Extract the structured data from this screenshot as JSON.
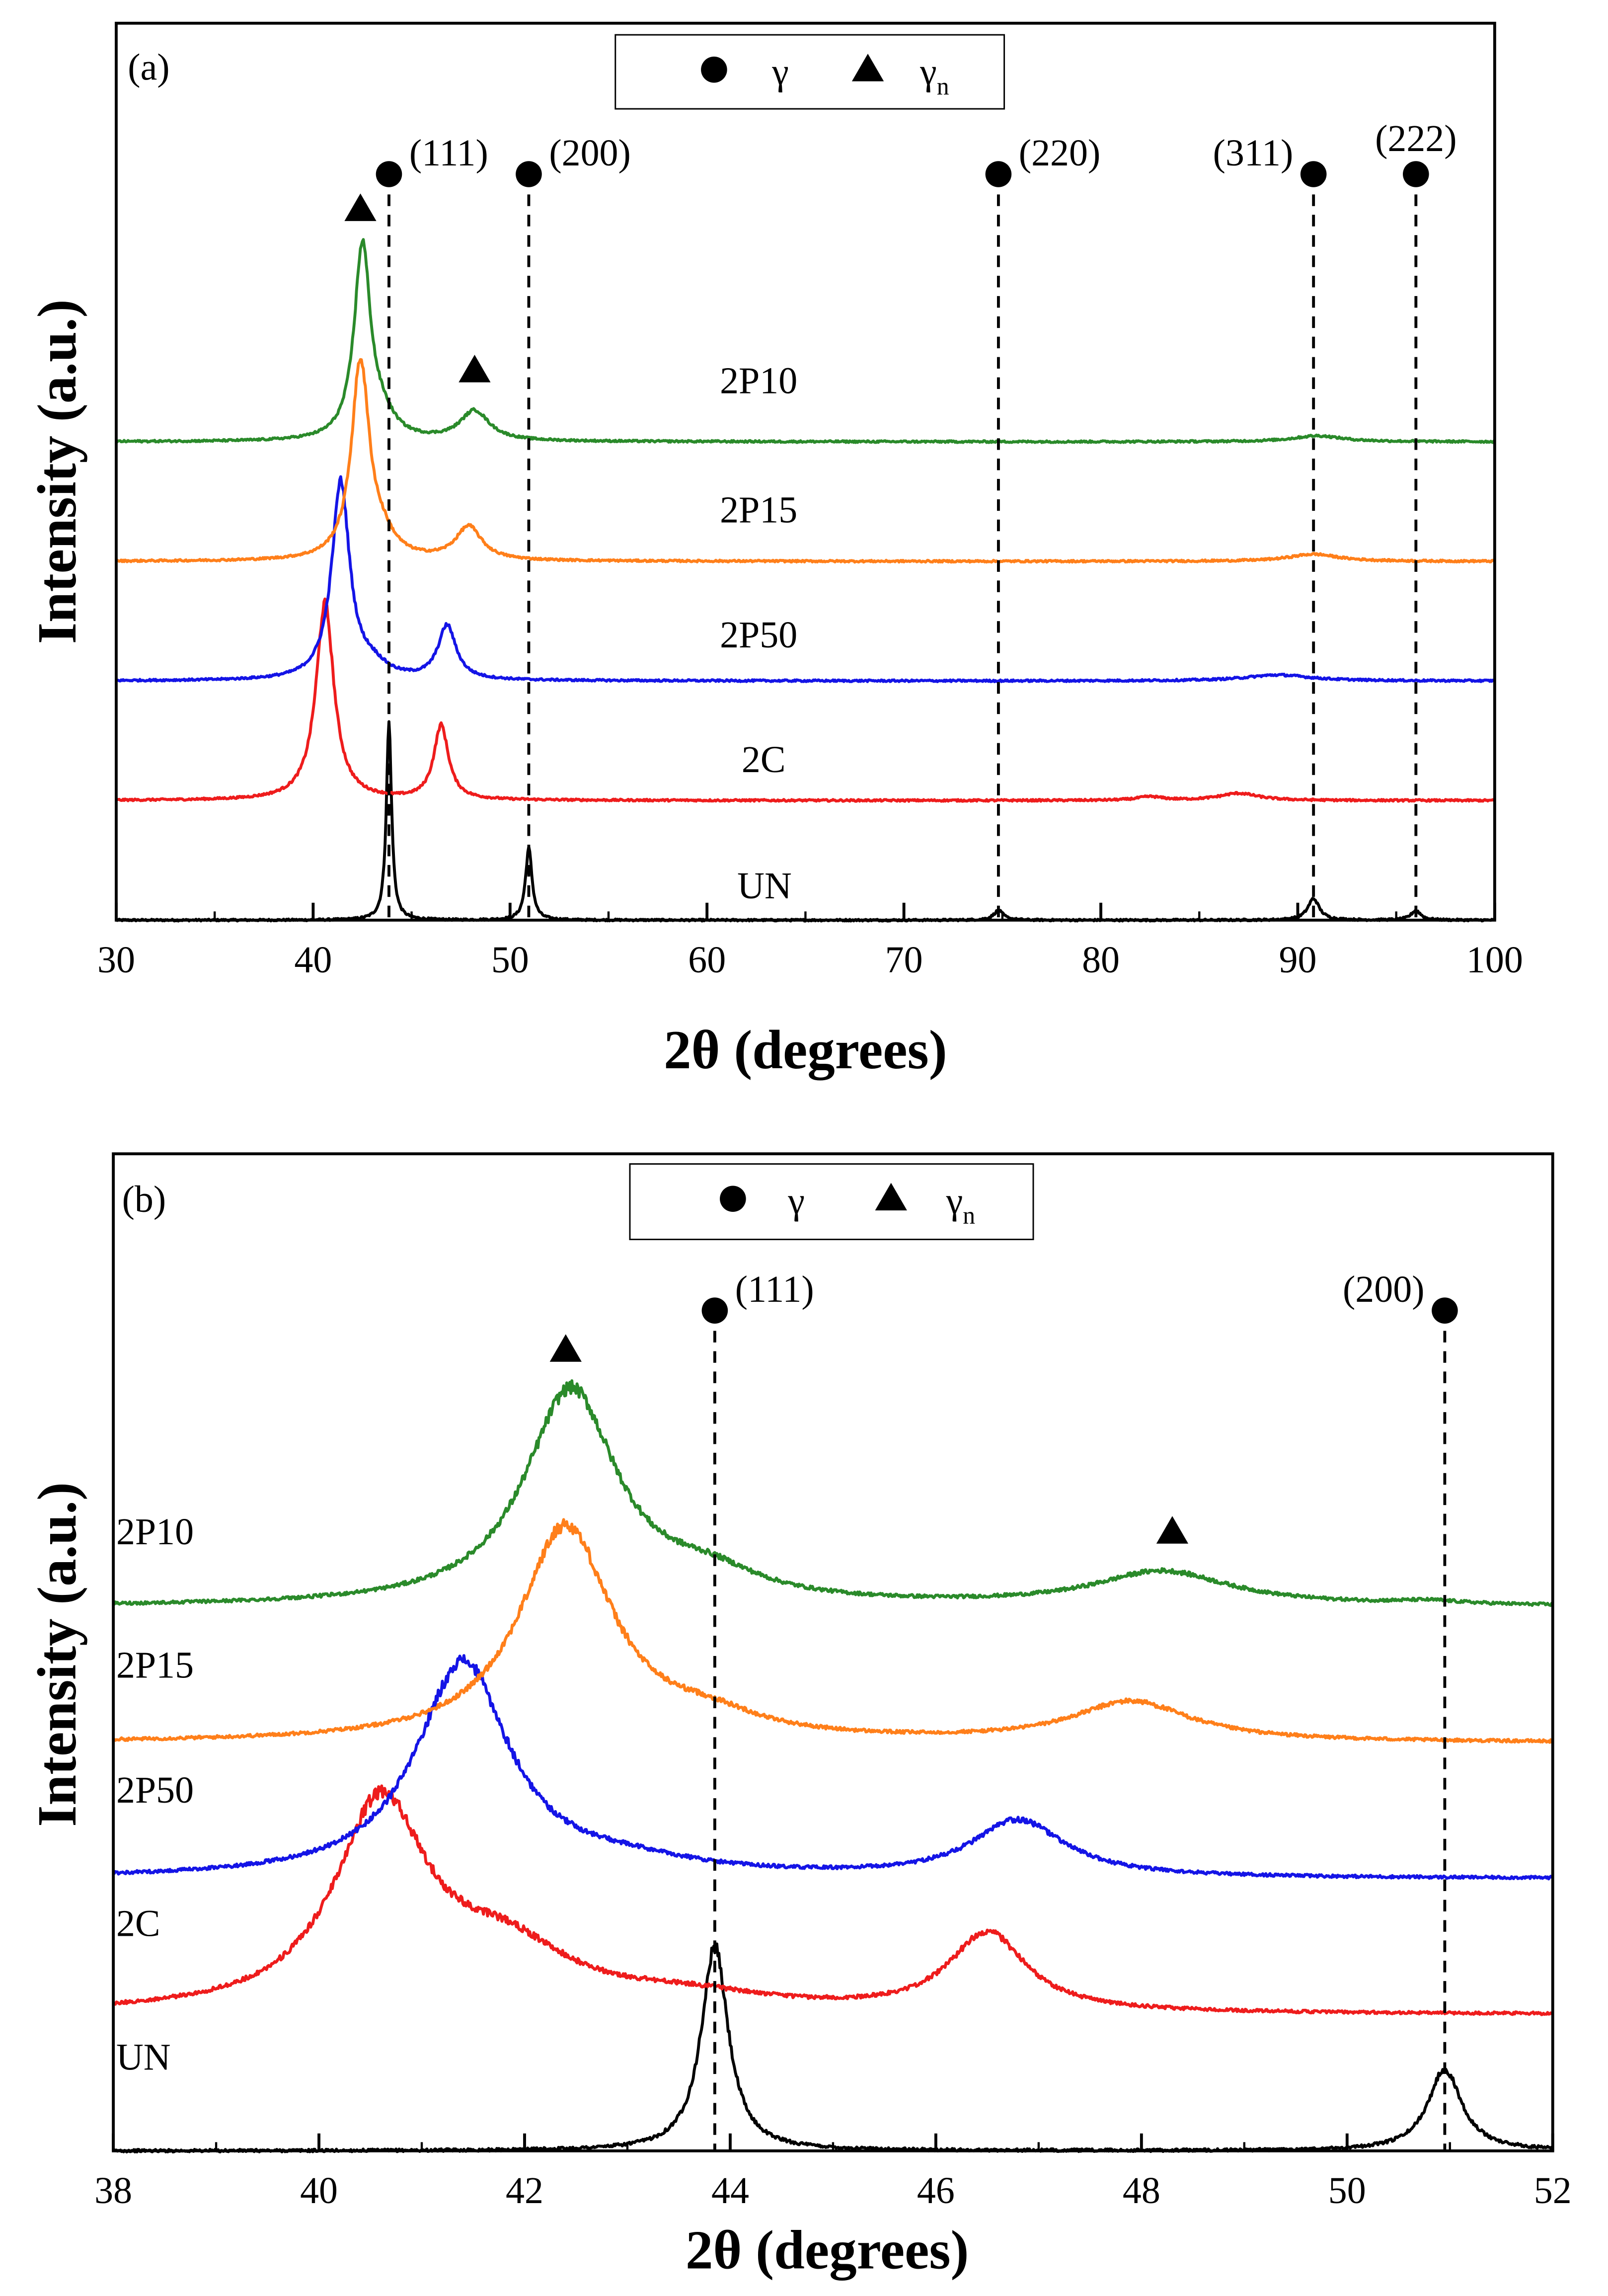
{
  "figure": {
    "legend": {
      "circle_label": "γ",
      "triangle_label": "γ",
      "triangle_sub": "n"
    },
    "colors": {
      "2P10": "#2a8a2a",
      "2P15": "#ff7f1a",
      "2P50": "#1414e6",
      "2C": "#ee1c1c",
      "UN": "#000000"
    }
  },
  "chart_data": [
    {
      "type": "line",
      "panel_label": "(a)",
      "xlabel": "2θ (degrees)",
      "ylabel": "Intensity (a.u.)",
      "xlim": [
        30,
        100
      ],
      "ylim": [
        0,
        7.5
      ],
      "xticks": [
        30,
        40,
        50,
        60,
        70,
        80,
        90,
        100
      ],
      "grid": false,
      "legend_position": "top-center",
      "series": [
        {
          "name": "2P10",
          "offset": 4.0,
          "label": "2P10",
          "peaks": [
            {
              "pos": 42.5,
              "amp": 1.62,
              "w": 0.5
            },
            {
              "pos": 43.5,
              "amp": 0.15,
              "w": 0.8
            },
            {
              "pos": 48.2,
              "amp": 0.25,
              "w": 0.9
            },
            {
              "pos": 91.0,
              "amp": 0.05,
              "w": 1.5
            }
          ]
        },
        {
          "name": "2P15",
          "offset": 3.0,
          "label": "2P15",
          "peaks": [
            {
              "pos": 42.4,
              "amp": 1.65,
              "w": 0.55
            },
            {
              "pos": 43.5,
              "amp": 0.14,
              "w": 0.8
            },
            {
              "pos": 47.9,
              "amp": 0.28,
              "w": 0.8
            },
            {
              "pos": 90.8,
              "amp": 0.06,
              "w": 1.5
            }
          ]
        },
        {
          "name": "2P50",
          "offset": 2.0,
          "label": "2P50",
          "peaks": [
            {
              "pos": 41.4,
              "amp": 1.65,
              "w": 0.55
            },
            {
              "pos": 43.0,
              "amp": 0.1,
              "w": 0.9
            },
            {
              "pos": 46.8,
              "amp": 0.45,
              "w": 0.55
            },
            {
              "pos": 89.0,
              "amp": 0.05,
              "w": 2.0
            }
          ]
        },
        {
          "name": "2C",
          "offset": 1.0,
          "label": "2C",
          "peaks": [
            {
              "pos": 40.6,
              "amp": 1.65,
              "w": 0.55
            },
            {
              "pos": 46.5,
              "amp": 0.62,
              "w": 0.45
            },
            {
              "pos": 82.5,
              "amp": 0.03,
              "w": 0.8
            },
            {
              "pos": 87.0,
              "amp": 0.06,
              "w": 1.2
            }
          ]
        },
        {
          "name": "UN",
          "offset": 0.0,
          "label": "UN",
          "peaks": [
            {
              "pos": 43.85,
              "amp": 1.65,
              "w": 0.16
            },
            {
              "pos": 50.95,
              "amp": 0.6,
              "w": 0.2
            },
            {
              "pos": 74.8,
              "amp": 0.08,
              "w": 0.3
            },
            {
              "pos": 90.8,
              "amp": 0.18,
              "w": 0.35
            },
            {
              "pos": 96.0,
              "amp": 0.08,
              "w": 0.3
            }
          ]
        }
      ],
      "reference_lines": [
        {
          "x": 43.85,
          "label": "(111)",
          "label_side": "right"
        },
        {
          "x": 50.95,
          "label": "(200)",
          "label_side": "right"
        },
        {
          "x": 74.8,
          "label": "(220)",
          "label_side": "right"
        },
        {
          "x": 90.8,
          "label": "(311)",
          "label_side": "left"
        },
        {
          "x": 96.0,
          "label": "(222)",
          "label_side": "top"
        }
      ],
      "triangle_markers": [
        {
          "x": 42.4
        },
        {
          "x": 48.2
        }
      ]
    },
    {
      "type": "line",
      "panel_label": "(b)",
      "xlabel": "2θ (degrees)",
      "ylabel": "Intensity (a.u.)",
      "xlim": [
        38,
        52
      ],
      "ylim": [
        0,
        8.8
      ],
      "xticks": [
        38,
        40,
        42,
        44,
        46,
        48,
        50,
        52
      ],
      "grid": false,
      "legend_position": "top-center",
      "series": [
        {
          "name": "2P10",
          "offset": 4.8,
          "label": "2P10",
          "peaks": [
            {
              "pos": 42.45,
              "amp": 1.9,
              "w": 0.55
            },
            {
              "pos": 43.8,
              "amp": 0.2,
              "w": 0.6
            },
            {
              "pos": 48.2,
              "amp": 0.3,
              "w": 0.8
            },
            {
              "pos": 50.8,
              "amp": 0.03,
              "w": 0.4
            }
          ]
        },
        {
          "name": "2P15",
          "offset": 3.6,
          "label": "2P15",
          "peaks": [
            {
              "pos": 42.4,
              "amp": 1.9,
              "w": 0.55
            },
            {
              "pos": 43.8,
              "amp": 0.15,
              "w": 0.6
            },
            {
              "pos": 47.9,
              "amp": 0.35,
              "w": 0.7
            }
          ]
        },
        {
          "name": "2P50",
          "offset": 2.4,
          "label": "2P50",
          "peaks": [
            {
              "pos": 41.4,
              "amp": 1.9,
              "w": 0.55
            },
            {
              "pos": 43.0,
              "amp": 0.1,
              "w": 0.9
            },
            {
              "pos": 46.8,
              "amp": 0.5,
              "w": 0.55
            }
          ]
        },
        {
          "name": "2C",
          "offset": 1.2,
          "label": "2C",
          "peaks": [
            {
              "pos": 40.6,
              "amp": 1.8,
              "w": 0.55
            },
            {
              "pos": 41.8,
              "amp": 0.5,
              "w": 0.8
            },
            {
              "pos": 43.6,
              "amp": 0.12,
              "w": 1.0
            },
            {
              "pos": 46.5,
              "amp": 0.7,
              "w": 0.45
            }
          ]
        },
        {
          "name": "UN",
          "offset": 0.0,
          "label": "UN",
          "peaks": [
            {
              "pos": 43.85,
              "amp": 1.8,
              "w": 0.16
            },
            {
              "pos": 50.95,
              "amp": 0.72,
              "w": 0.2
            }
          ]
        }
      ],
      "reference_lines": [
        {
          "x": 43.85,
          "label": "(111)",
          "label_side": "right"
        },
        {
          "x": 50.95,
          "label": "(200)",
          "label_side": "left"
        }
      ],
      "triangle_markers": [
        {
          "x": 42.4
        },
        {
          "x": 48.3
        }
      ]
    }
  ]
}
